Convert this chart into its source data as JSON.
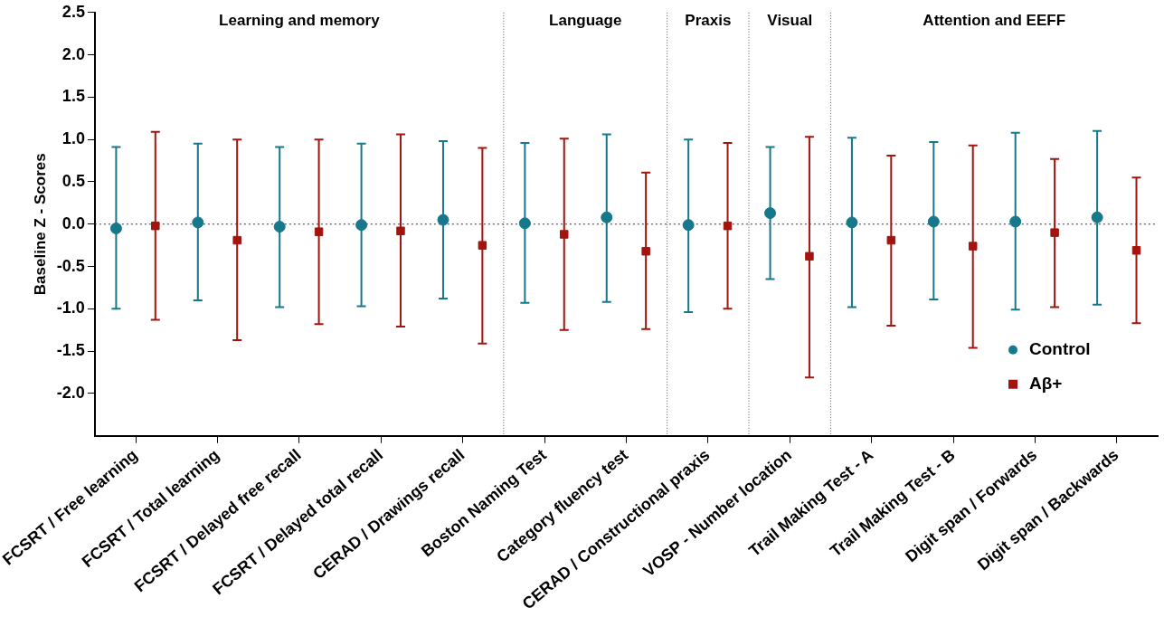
{
  "chart_data": {
    "type": "scatter",
    "ylabel": "Baseline Z - Scores",
    "categories": [
      "FCSRT / Free learning",
      "FCSRT / Total learning",
      "FCSRT / Delayed free recall",
      "FCSRT / Delayed total recall",
      "CERAD / Drawings recall",
      "Boston Naming Test",
      "Category fluency test",
      "CERAD / Constructional praxis",
      "VOSP - Number location",
      "Trail Making Test - A",
      "Trail Making Test - B",
      "Digit span / Forwards",
      "Digit span / Backwards"
    ],
    "series": [
      {
        "name": "Control",
        "color": "#17788c",
        "marker": "circle",
        "values": [
          -0.05,
          0.02,
          -0.03,
          -0.01,
          0.05,
          0.01,
          0.08,
          -0.01,
          0.13,
          0.02,
          0.03,
          0.03,
          0.08
        ],
        "errors": [
          [
            -1.0,
            0.91
          ],
          [
            -0.9,
            0.95
          ],
          [
            -0.98,
            0.91
          ],
          [
            -0.97,
            0.95
          ],
          [
            -0.88,
            0.98
          ],
          [
            -0.93,
            0.96
          ],
          [
            -0.92,
            1.06
          ],
          [
            -1.04,
            1.0
          ],
          [
            -0.65,
            0.91
          ],
          [
            -0.98,
            1.02
          ],
          [
            -0.89,
            0.97
          ],
          [
            -1.01,
            1.08
          ],
          [
            -0.95,
            1.1
          ]
        ]
      },
      {
        "name": "Aβ+",
        "color": "#a3140e",
        "marker": "square",
        "values": [
          -0.02,
          -0.19,
          -0.09,
          -0.08,
          -0.25,
          -0.12,
          -0.32,
          -0.02,
          -0.38,
          -0.19,
          -0.26,
          -0.1,
          -0.31
        ],
        "errors": [
          [
            -1.13,
            1.09
          ],
          [
            -1.37,
            1.0
          ],
          [
            -1.18,
            1.0
          ],
          [
            -1.21,
            1.06
          ],
          [
            -1.41,
            0.9
          ],
          [
            -1.25,
            1.01
          ],
          [
            -1.24,
            0.61
          ],
          [
            -1.0,
            0.96
          ],
          [
            -1.81,
            1.03
          ],
          [
            -1.2,
            0.81
          ],
          [
            -1.46,
            0.93
          ],
          [
            -0.98,
            0.77
          ],
          [
            -1.17,
            0.55
          ]
        ]
      }
    ],
    "ylim": [
      -2.5,
      2.5
    ],
    "yticks": [
      {
        "value": -2,
        "label": "-2.0"
      },
      -1.5,
      {
        "value": -1,
        "label": "-1.0"
      },
      -0.5,
      {
        "value": 0,
        "label": "0.0"
      },
      0.5,
      {
        "value": 1,
        "label": "1.0"
      },
      1.5,
      {
        "value": 2,
        "label": "2.0"
      },
      2.5
    ],
    "ref_lines": [
      {
        "axis": "y",
        "value": 0,
        "line_style": "dotted"
      }
    ],
    "annotations": [
      "Learning and memory",
      "Language",
      "Praxis",
      "Visual",
      "Attention and EEFF"
    ],
    "grid": false,
    "legend": "bottom right"
  }
}
